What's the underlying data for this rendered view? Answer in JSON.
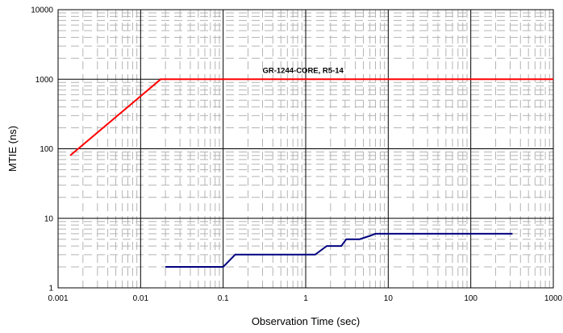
{
  "chart_data": {
    "type": "line",
    "title": "",
    "xlabel": "Observation Time (sec)",
    "ylabel": "MTIE (ns)",
    "x_scale": "log",
    "y_scale": "log",
    "xlim": [
      0.001,
      1000
    ],
    "ylim": [
      1,
      10000
    ],
    "x_ticks": [
      "0.001",
      "0.01",
      "0.1",
      "1",
      "10",
      "100",
      "1000"
    ],
    "y_ticks": [
      "1",
      "10",
      "100",
      "1000",
      "10000"
    ],
    "grid": true,
    "legend": "none",
    "annotations": [
      {
        "text": "GR-1244-CORE, R5-14",
        "series": "mask"
      }
    ],
    "series": [
      {
        "key": "mask",
        "color": "#ff0000",
        "points": [
          [
            0.0014,
            80
          ],
          [
            0.0175,
            1000
          ],
          [
            1000,
            1000
          ]
        ]
      },
      {
        "key": "measured",
        "color": "#000080",
        "points": [
          [
            0.02,
            2
          ],
          [
            0.1,
            2
          ],
          [
            0.14,
            3
          ],
          [
            1.3,
            3
          ],
          [
            1.8,
            4
          ],
          [
            2.7,
            4
          ],
          [
            3.1,
            5
          ],
          [
            4.5,
            5
          ],
          [
            6.0,
            5.6
          ],
          [
            7.0,
            6
          ],
          [
            320,
            6
          ]
        ]
      }
    ]
  }
}
